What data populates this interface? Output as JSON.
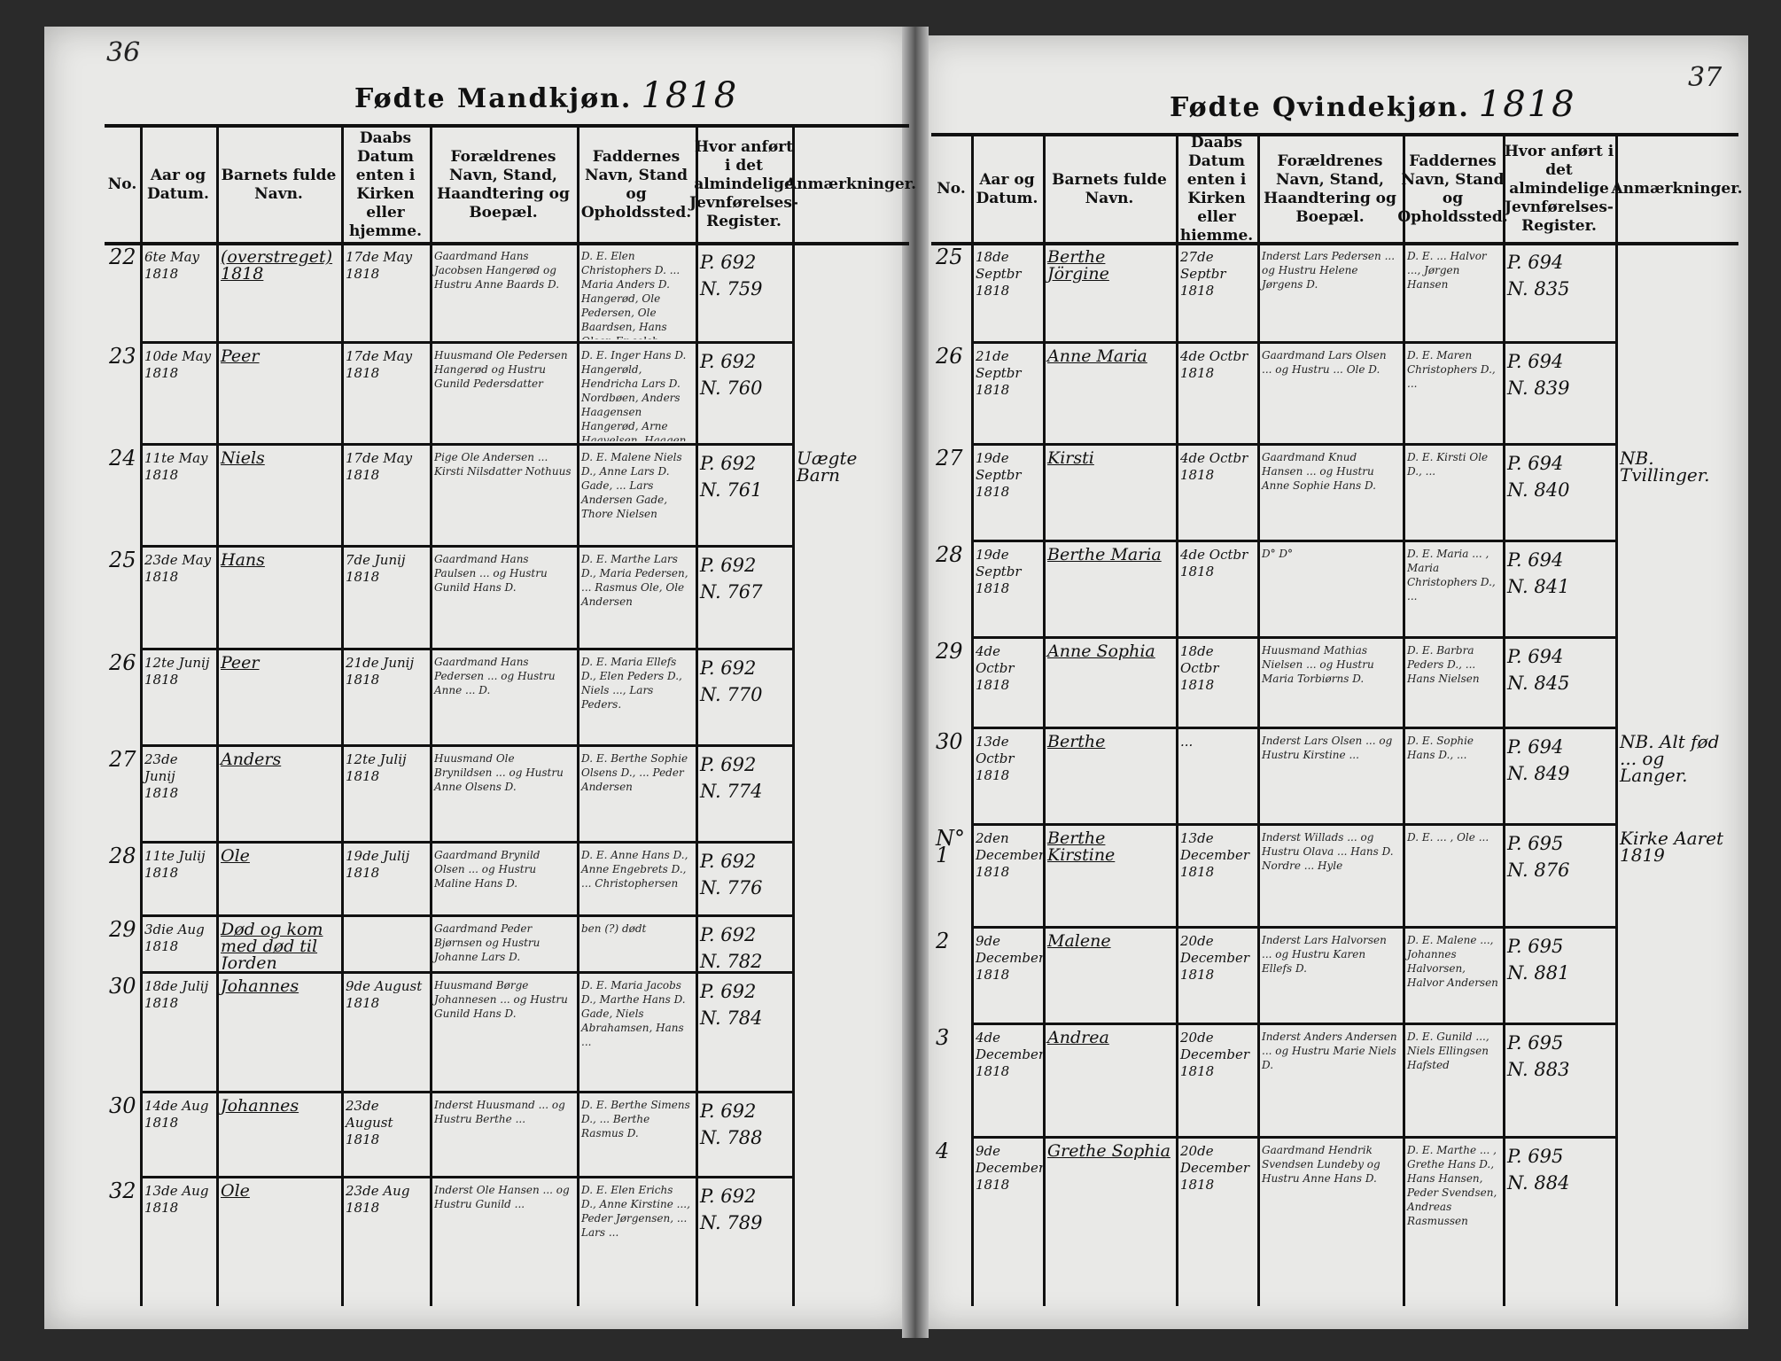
{
  "left_page": {
    "page_number": "36",
    "title": "Fødte Mandkjøn.",
    "year": "1818",
    "headers": [
      "No.",
      "Aar og Datum.",
      "Barnets fulde Navn.",
      "Daabs Datum enten i Kirken eller hjemme.",
      "Forældrenes Navn, Stand, Haandtering og Boepæl.",
      "Faddernes Navn, Stand og Opholdssted.",
      "Hvor anført i det almindelige Jevnførelses-Register.",
      "Anmærkninger."
    ],
    "rows": [
      {
        "no": "22",
        "date": "6te May 1818",
        "name": "(overstreget) 1818",
        "baptism": "17de May 1818",
        "parents": "Gaardmand Hans Jacobsen Hangerød og Hustru Anne Baards D.",
        "sponsors": "D. E. Elen Christophers D. ... Maria Anders D. Hangerød, Ole Pedersen, Ole Baardsen, Hans Olsen Engelsb.",
        "register": "P. 692\nN. 759",
        "remark": ""
      },
      {
        "no": "23",
        "date": "10de May 1818",
        "name": "Peer",
        "baptism": "17de May 1818",
        "parents": "Huusmand Ole Pedersen Hangerød og Hustru Gunild Pedersdatter",
        "sponsors": "D. E. Inger Hans D. Hangerøld, Hendricha Lars D. Nordbøen, Anders Haagensen Hangerød, Arne Haavelsen, Haagen Andersen",
        "register": "P. 692\nN. 760",
        "remark": ""
      },
      {
        "no": "24",
        "date": "11te May 1818",
        "name": "Niels",
        "baptism": "17de May 1818",
        "parents": "Pige Ole Andersen ... Kirsti Nilsdatter Nothuus",
        "sponsors": "D. E. Malene Niels D., Anne Lars D. Gade, ... Lars Andersen Gade, Thore Nielsen",
        "register": "P. 692\nN. 761",
        "remark": "Uægte Barn"
      },
      {
        "no": "25",
        "date": "23de May 1818",
        "name": "Hans",
        "baptism": "7de Junij 1818",
        "parents": "Gaardmand Hans Paulsen ... og Hustru Gunild Hans D.",
        "sponsors": "D. E. Marthe Lars D., Maria Pedersen, ... Rasmus Ole, Ole Andersen",
        "register": "P. 692\nN. 767",
        "remark": ""
      },
      {
        "no": "26",
        "date": "12te Junij 1818",
        "name": "Peer",
        "baptism": "21de Junij 1818",
        "parents": "Gaardmand Hans Pedersen ... og Hustru Anne ... D.",
        "sponsors": "D. E. Maria Ellefs D., Elen Peders D., Niels ..., Lars Peders.",
        "register": "P. 692\nN. 770",
        "remark": ""
      },
      {
        "no": "27",
        "date": "23de Junij 1818",
        "name": "Anders",
        "baptism": "12te Julij 1818",
        "parents": "Huusmand Ole Brynildsen ... og Hustru Anne Olsens D.",
        "sponsors": "D. E. Berthe Sophie Olsens D., ... Peder Andersen",
        "register": "P. 692\nN. 774",
        "remark": ""
      },
      {
        "no": "28",
        "date": "11te Julij 1818",
        "name": "Ole",
        "baptism": "19de Julij 1818",
        "parents": "Gaardmand Brynild Olsen ... og Hustru Maline Hans D.",
        "sponsors": "D. E. Anne Hans D., Anne Engebrets D., ... Christophersen",
        "register": "P. 692\nN. 776",
        "remark": ""
      },
      {
        "no": "29",
        "date": "3die Aug 1818",
        "name": "Død og kom med død til Jorden",
        "baptism": "",
        "parents": "Gaardmand Peder Bjørnsen og Hustru Johanne Lars D.",
        "sponsors": "ben (?) dødt",
        "register": "P. 692\nN. 782",
        "remark": ""
      },
      {
        "no": "30",
        "date": "18de Julij 1818",
        "name": "Johannes",
        "baptism": "9de August 1818",
        "parents": "Huusmand Børge Johannesen ... og Hustru Gunild Hans D.",
        "sponsors": "D. E. Maria Jacobs D., Marthe Hans D. Gade, Niels Abrahamsen, Hans ...",
        "register": "P. 692\nN. 784",
        "remark": ""
      },
      {
        "no": "30",
        "date": "14de Aug 1818",
        "name": "Johannes",
        "baptism": "23de August 1818",
        "parents": "Inderst Huusmand ... og Hustru Berthe ...",
        "sponsors": "D. E. Berthe Simens D., ... Berthe Rasmus D.",
        "register": "P. 692\nN. 788",
        "remark": ""
      },
      {
        "no": "32",
        "date": "13de Aug 1818",
        "name": "Ole",
        "baptism": "23de Aug 1818",
        "parents": "Inderst Ole Hansen ... og Hustru Gunild ...",
        "sponsors": "D. E. Elen Erichs D., Anne Kirstine ..., Peder Jørgensen, ... Lars ...",
        "register": "P. 692\nN. 789",
        "remark": ""
      }
    ]
  },
  "right_page": {
    "page_number": "37",
    "title": "Fødte Qvindekjøn.",
    "year": "1818",
    "headers": [
      "No.",
      "Aar og Datum.",
      "Barnets fulde Navn.",
      "Daabs Datum enten i Kirken eller hiemme.",
      "Forældrenes Navn, Stand, Haandtering og Boepæl.",
      "Faddernes Navn, Stand og Opholdssted.",
      "Hvor anført i det almindelige Jevnførelses-Register.",
      "Anmærkninger."
    ],
    "rows": [
      {
        "no": "25",
        "date": "18de Septbr 1818",
        "name": "Berthe Jörgine",
        "baptism": "27de Septbr 1818",
        "parents": "Inderst Lars Pedersen ... og Hustru Helene Jørgens D.",
        "sponsors": "D. E. ... Halvor ..., Jørgen Hansen",
        "register": "P. 694\nN. 835",
        "remark": ""
      },
      {
        "no": "26",
        "date": "21de Septbr 1818",
        "name": "Anne Maria",
        "baptism": "4de Octbr 1818",
        "parents": "Gaardmand Lars Olsen ... og Hustru ... Ole D.",
        "sponsors": "D. E. Maren Christophers D., ...",
        "register": "P. 694\nN. 839",
        "remark": ""
      },
      {
        "no": "27",
        "date": "19de Septbr 1818",
        "name": "Kirsti",
        "baptism": "4de Octbr 1818",
        "parents": "Gaardmand Knud Hansen ... og Hustru Anne Sophie Hans D.",
        "sponsors": "D. E. Kirsti Ole D., ...",
        "register": "P. 694\nN. 840",
        "remark": "NB. Tvillinger."
      },
      {
        "no": "28",
        "date": "19de Septbr 1818",
        "name": "Berthe Maria",
        "baptism": "4de Octbr 1818",
        "parents": "D° D°",
        "sponsors": "D. E. Maria ... , Maria Christophers D., ...",
        "register": "P. 694\nN. 841",
        "remark": ""
      },
      {
        "no": "29",
        "date": "4de Octbr 1818",
        "name": "Anne Sophia",
        "baptism": "18de Octbr 1818",
        "parents": "Huusmand Mathias Nielsen ... og Hustru Maria Torbiørns D.",
        "sponsors": "D. E. Barbra Peders D., ... Hans Nielsen",
        "register": "P. 694\nN. 845",
        "remark": ""
      },
      {
        "no": "30",
        "date": "13de Octbr 1818",
        "name": "Berthe",
        "baptism": "...",
        "parents": "Inderst Lars Olsen ... og Hustru Kirstine ...",
        "sponsors": "D. E. Sophie Hans D., ...",
        "register": "P. 694\nN. 849",
        "remark": "NB. Alt fød ... og Langer."
      },
      {
        "no": "N° 1",
        "date": "2den December 1818",
        "name": "Berthe Kirstine",
        "baptism": "13de December 1818",
        "parents": "Inderst Willads ... og Hustru Olava ... Hans D. Nordre ... Hyle",
        "sponsors": "D. E. ... , Ole ...",
        "register": "P. 695\nN. 876",
        "remark": "Kirke Aaret 1819"
      },
      {
        "no": "2",
        "date": "9de December 1818",
        "name": "Malene",
        "baptism": "20de December 1818",
        "parents": "Inderst Lars Halvorsen ... og Hustru Karen Ellefs D.",
        "sponsors": "D. E. Malene ..., Johannes Halvorsen, Halvor Andersen",
        "register": "P. 695\nN. 881",
        "remark": ""
      },
      {
        "no": "3",
        "date": "4de December 1818",
        "name": "Andrea",
        "baptism": "20de December 1818",
        "parents": "Inderst Anders Andersen ... og Hustru Marie Niels D.",
        "sponsors": "D. E. Gunild ..., Niels Ellingsen Hafsted",
        "register": "P. 695\nN. 883",
        "remark": ""
      },
      {
        "no": "4",
        "date": "9de December 1818",
        "name": "Grethe Sophia",
        "baptism": "20de December 1818",
        "parents": "Gaardmand Hendrik Svendsen Lundeby og Hustru Anne Hans D.",
        "sponsors": "D. E. Marthe ... , Grethe Hans D., Hans Hansen, Peder Svendsen, Andreas Rasmussen",
        "register": "P. 695\nN. 884",
        "remark": ""
      }
    ]
  }
}
